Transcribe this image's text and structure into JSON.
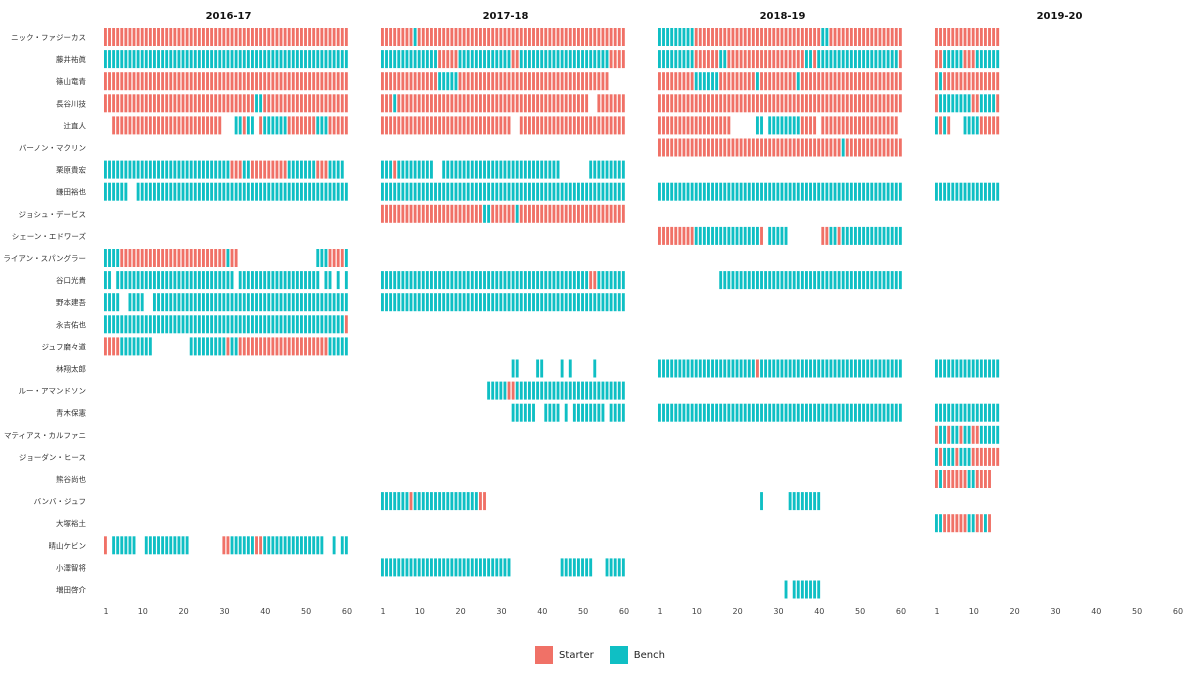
{
  "chart_data": {
    "type": "heatmap",
    "panels": [
      "2016-17",
      "2017-18",
      "2018-19",
      "2019-20"
    ],
    "x_ticks": [
      1,
      10,
      20,
      30,
      40,
      50,
      60
    ],
    "xlim": [
      1,
      60
    ],
    "players": [
      "ニック・ファジーカス",
      "藤井祐眞",
      "篠山竜青",
      "長谷川技",
      "辻直人",
      "バーノン・マクリン",
      "栗原貴宏",
      "鎌田裕也",
      "ジョシュ・デービス",
      "シェーン・エドワーズ",
      "ライアン・スパングラー",
      "谷口光貴",
      "野本建吾",
      "永吉佑也",
      "ジュフ磨々道",
      "林翔太郎",
      "ルー・アマンドソン",
      "青木保憲",
      "マティアス・カルファニ",
      "ジョーダン・ヒース",
      "熊谷尚也",
      "バンバ・ジュフ",
      "大塚裕土",
      "晴山ケビン",
      "小澤智将",
      "増田啓介"
    ],
    "segment_format": "[first_game, last_game, role] with role S = Starter, B = Bench",
    "games": {
      "2016-17": [
        [
          [
            1,
            60,
            "S"
          ]
        ],
        [
          [
            1,
            60,
            "B"
          ]
        ],
        [
          [
            1,
            60,
            "S"
          ]
        ],
        [
          [
            1,
            37,
            "S"
          ],
          [
            38,
            39,
            "B"
          ],
          [
            40,
            60,
            "S"
          ]
        ],
        [
          [
            3,
            29,
            "S"
          ],
          [
            33,
            34,
            "B"
          ],
          [
            35,
            35,
            "S"
          ],
          [
            36,
            37,
            "B"
          ],
          [
            39,
            39,
            "S"
          ],
          [
            40,
            45,
            "B"
          ],
          [
            46,
            52,
            "S"
          ],
          [
            53,
            53,
            "B"
          ],
          [
            54,
            55,
            "B"
          ],
          [
            56,
            56,
            "S"
          ],
          [
            57,
            60,
            "S"
          ]
        ],
        [],
        [
          [
            1,
            31,
            "B"
          ],
          [
            32,
            34,
            "S"
          ],
          [
            35,
            36,
            "B"
          ],
          [
            37,
            45,
            "S"
          ],
          [
            46,
            52,
            "B"
          ],
          [
            53,
            55,
            "S"
          ],
          [
            56,
            59,
            "B"
          ]
        ],
        [
          [
            1,
            6,
            "B"
          ],
          [
            9,
            60,
            "B"
          ]
        ],
        [],
        [],
        [
          [
            1,
            4,
            "B"
          ],
          [
            5,
            30,
            "S"
          ],
          [
            31,
            31,
            "B"
          ],
          [
            32,
            33,
            "S"
          ],
          [
            53,
            55,
            "B"
          ],
          [
            56,
            59,
            "S"
          ],
          [
            60,
            60,
            "B"
          ]
        ],
        [
          [
            1,
            2,
            "B"
          ],
          [
            4,
            32,
            "B"
          ],
          [
            34,
            53,
            "B"
          ],
          [
            55,
            56,
            "B"
          ],
          [
            58,
            58,
            "B"
          ],
          [
            60,
            60,
            "B"
          ]
        ],
        [
          [
            1,
            4,
            "B"
          ],
          [
            7,
            10,
            "B"
          ],
          [
            13,
            60,
            "B"
          ]
        ],
        [
          [
            1,
            59,
            "B"
          ],
          [
            60,
            60,
            "S"
          ]
        ],
        [
          [
            1,
            4,
            "S"
          ],
          [
            5,
            12,
            "B"
          ],
          [
            22,
            30,
            "B"
          ],
          [
            31,
            31,
            "S"
          ],
          [
            32,
            33,
            "B"
          ],
          [
            34,
            55,
            "S"
          ],
          [
            56,
            60,
            "B"
          ]
        ],
        [],
        [],
        [],
        [],
        [],
        [],
        [],
        [],
        [
          [
            1,
            1,
            "S"
          ],
          [
            3,
            8,
            "B"
          ],
          [
            11,
            21,
            "B"
          ],
          [
            30,
            31,
            "S"
          ],
          [
            32,
            37,
            "B"
          ],
          [
            38,
            39,
            "S"
          ],
          [
            40,
            54,
            "B"
          ],
          [
            57,
            57,
            "B"
          ],
          [
            59,
            60,
            "B"
          ]
        ],
        [],
        []
      ],
      "2017-18": [
        [
          [
            1,
            8,
            "S"
          ],
          [
            9,
            9,
            "B"
          ],
          [
            10,
            60,
            "S"
          ]
        ],
        [
          [
            1,
            14,
            "B"
          ],
          [
            15,
            19,
            "S"
          ],
          [
            20,
            32,
            "B"
          ],
          [
            33,
            34,
            "S"
          ],
          [
            35,
            56,
            "B"
          ],
          [
            57,
            60,
            "S"
          ]
        ],
        [
          [
            1,
            14,
            "S"
          ],
          [
            15,
            19,
            "B"
          ],
          [
            20,
            56,
            "S"
          ]
        ],
        [
          [
            1,
            3,
            "S"
          ],
          [
            4,
            4,
            "B"
          ],
          [
            5,
            51,
            "S"
          ],
          [
            54,
            60,
            "S"
          ]
        ],
        [
          [
            1,
            32,
            "S"
          ],
          [
            35,
            60,
            "S"
          ]
        ],
        [],
        [
          [
            1,
            3,
            "B"
          ],
          [
            4,
            4,
            "S"
          ],
          [
            5,
            13,
            "B"
          ],
          [
            16,
            44,
            "B"
          ],
          [
            52,
            60,
            "B"
          ]
        ],
        [
          [
            1,
            60,
            "B"
          ]
        ],
        [
          [
            1,
            25,
            "S"
          ],
          [
            26,
            27,
            "B"
          ],
          [
            28,
            33,
            "S"
          ],
          [
            34,
            34,
            "B"
          ],
          [
            35,
            60,
            "S"
          ]
        ],
        [],
        [],
        [
          [
            1,
            51,
            "B"
          ],
          [
            52,
            53,
            "S"
          ],
          [
            54,
            60,
            "B"
          ]
        ],
        [
          [
            1,
            60,
            "B"
          ]
        ],
        [],
        [],
        [
          [
            33,
            34,
            "B"
          ],
          [
            39,
            40,
            "B"
          ],
          [
            45,
            45,
            "B"
          ],
          [
            47,
            47,
            "B"
          ],
          [
            53,
            53,
            "B"
          ]
        ],
        [
          [
            27,
            31,
            "B"
          ],
          [
            32,
            33,
            "S"
          ],
          [
            34,
            60,
            "B"
          ]
        ],
        [
          [
            33,
            38,
            "B"
          ],
          [
            41,
            44,
            "B"
          ],
          [
            46,
            46,
            "B"
          ],
          [
            48,
            55,
            "B"
          ],
          [
            57,
            60,
            "B"
          ]
        ],
        [],
        [],
        [],
        [
          [
            1,
            7,
            "B"
          ],
          [
            8,
            8,
            "S"
          ],
          [
            9,
            24,
            "B"
          ],
          [
            25,
            26,
            "S"
          ]
        ],
        [],
        [],
        [
          [
            1,
            32,
            "B"
          ],
          [
            45,
            52,
            "B"
          ],
          [
            56,
            60,
            "B"
          ]
        ],
        []
      ],
      "2018-19": [
        [
          [
            1,
            9,
            "B"
          ],
          [
            10,
            25,
            "S"
          ],
          [
            26,
            40,
            "S"
          ],
          [
            41,
            42,
            "B"
          ],
          [
            43,
            60,
            "S"
          ]
        ],
        [
          [
            1,
            9,
            "B"
          ],
          [
            10,
            15,
            "S"
          ],
          [
            16,
            17,
            "B"
          ],
          [
            18,
            18,
            "S"
          ],
          [
            19,
            36,
            "S"
          ],
          [
            37,
            38,
            "B"
          ],
          [
            39,
            39,
            "S"
          ],
          [
            40,
            59,
            "B"
          ],
          [
            60,
            60,
            "S"
          ]
        ],
        [
          [
            1,
            9,
            "S"
          ],
          [
            10,
            15,
            "B"
          ],
          [
            16,
            24,
            "S"
          ],
          [
            25,
            25,
            "B"
          ],
          [
            26,
            34,
            "S"
          ],
          [
            35,
            35,
            "B"
          ],
          [
            36,
            60,
            "S"
          ]
        ],
        [
          [
            1,
            60,
            "S"
          ]
        ],
        [
          [
            1,
            18,
            "S"
          ],
          [
            25,
            26,
            "B"
          ],
          [
            28,
            35,
            "B"
          ],
          [
            36,
            39,
            "S"
          ],
          [
            41,
            59,
            "S"
          ]
        ],
        [
          [
            1,
            45,
            "S"
          ],
          [
            46,
            46,
            "B"
          ],
          [
            47,
            60,
            "S"
          ]
        ],
        [],
        [
          [
            1,
            60,
            "B"
          ]
        ],
        [],
        [
          [
            1,
            9,
            "S"
          ],
          [
            10,
            25,
            "B"
          ],
          [
            26,
            26,
            "S"
          ],
          [
            28,
            32,
            "B"
          ],
          [
            41,
            42,
            "S"
          ],
          [
            43,
            44,
            "B"
          ],
          [
            45,
            45,
            "S"
          ],
          [
            46,
            60,
            "B"
          ]
        ],
        [],
        [
          [
            16,
            60,
            "B"
          ]
        ],
        [],
        [],
        [],
        [
          [
            1,
            24,
            "B"
          ],
          [
            25,
            25,
            "S"
          ],
          [
            26,
            60,
            "B"
          ]
        ],
        [],
        [
          [
            1,
            60,
            "B"
          ]
        ],
        [],
        [],
        [],
        [
          [
            26,
            26,
            "B"
          ],
          [
            33,
            40,
            "B"
          ]
        ],
        [],
        [],
        [],
        [
          [
            32,
            32,
            "B"
          ],
          [
            34,
            40,
            "B"
          ]
        ]
      ],
      "2019-20": [
        [
          [
            1,
            16,
            "S"
          ]
        ],
        [
          [
            1,
            2,
            "S"
          ],
          [
            3,
            7,
            "B"
          ],
          [
            8,
            10,
            "S"
          ],
          [
            11,
            16,
            "B"
          ]
        ],
        [
          [
            1,
            1,
            "S"
          ],
          [
            2,
            2,
            "B"
          ],
          [
            3,
            16,
            "S"
          ]
        ],
        [
          [
            1,
            1,
            "S"
          ],
          [
            2,
            9,
            "B"
          ],
          [
            10,
            11,
            "S"
          ],
          [
            12,
            15,
            "B"
          ],
          [
            16,
            16,
            "S"
          ]
        ],
        [
          [
            1,
            1,
            "B"
          ],
          [
            2,
            2,
            "S"
          ],
          [
            3,
            3,
            "B"
          ],
          [
            4,
            4,
            "S"
          ],
          [
            8,
            11,
            "B"
          ],
          [
            12,
            16,
            "S"
          ]
        ],
        [],
        [],
        [
          [
            1,
            16,
            "B"
          ]
        ],
        [],
        [],
        [],
        [],
        [],
        [],
        [],
        [
          [
            1,
            16,
            "B"
          ]
        ],
        [],
        [
          [
            1,
            16,
            "B"
          ]
        ],
        [
          [
            1,
            1,
            "S"
          ],
          [
            2,
            3,
            "B"
          ],
          [
            4,
            4,
            "S"
          ],
          [
            5,
            6,
            "B"
          ],
          [
            7,
            7,
            "S"
          ],
          [
            8,
            9,
            "B"
          ],
          [
            10,
            11,
            "S"
          ],
          [
            12,
            16,
            "B"
          ]
        ],
        [
          [
            1,
            1,
            "B"
          ],
          [
            2,
            2,
            "S"
          ],
          [
            3,
            5,
            "B"
          ],
          [
            6,
            6,
            "S"
          ],
          [
            7,
            9,
            "B"
          ],
          [
            10,
            10,
            "S"
          ],
          [
            11,
            16,
            "S"
          ]
        ],
        [
          [
            1,
            1,
            "S"
          ],
          [
            2,
            2,
            "B"
          ],
          [
            3,
            4,
            "S"
          ],
          [
            5,
            8,
            "S"
          ],
          [
            9,
            10,
            "B"
          ],
          [
            11,
            14,
            "S"
          ]
        ],
        [],
        [
          [
            1,
            2,
            "B"
          ],
          [
            3,
            8,
            "S"
          ],
          [
            9,
            10,
            "B"
          ],
          [
            11,
            12,
            "S"
          ],
          [
            13,
            13,
            "B"
          ],
          [
            14,
            14,
            "S"
          ]
        ],
        [],
        [],
        []
      ]
    },
    "legend": {
      "position": "bottom",
      "items": [
        {
          "label": "Starter",
          "color": "#F07167"
        },
        {
          "label": "Bench",
          "color": "#0FBFC4"
        }
      ]
    },
    "grid": false
  }
}
